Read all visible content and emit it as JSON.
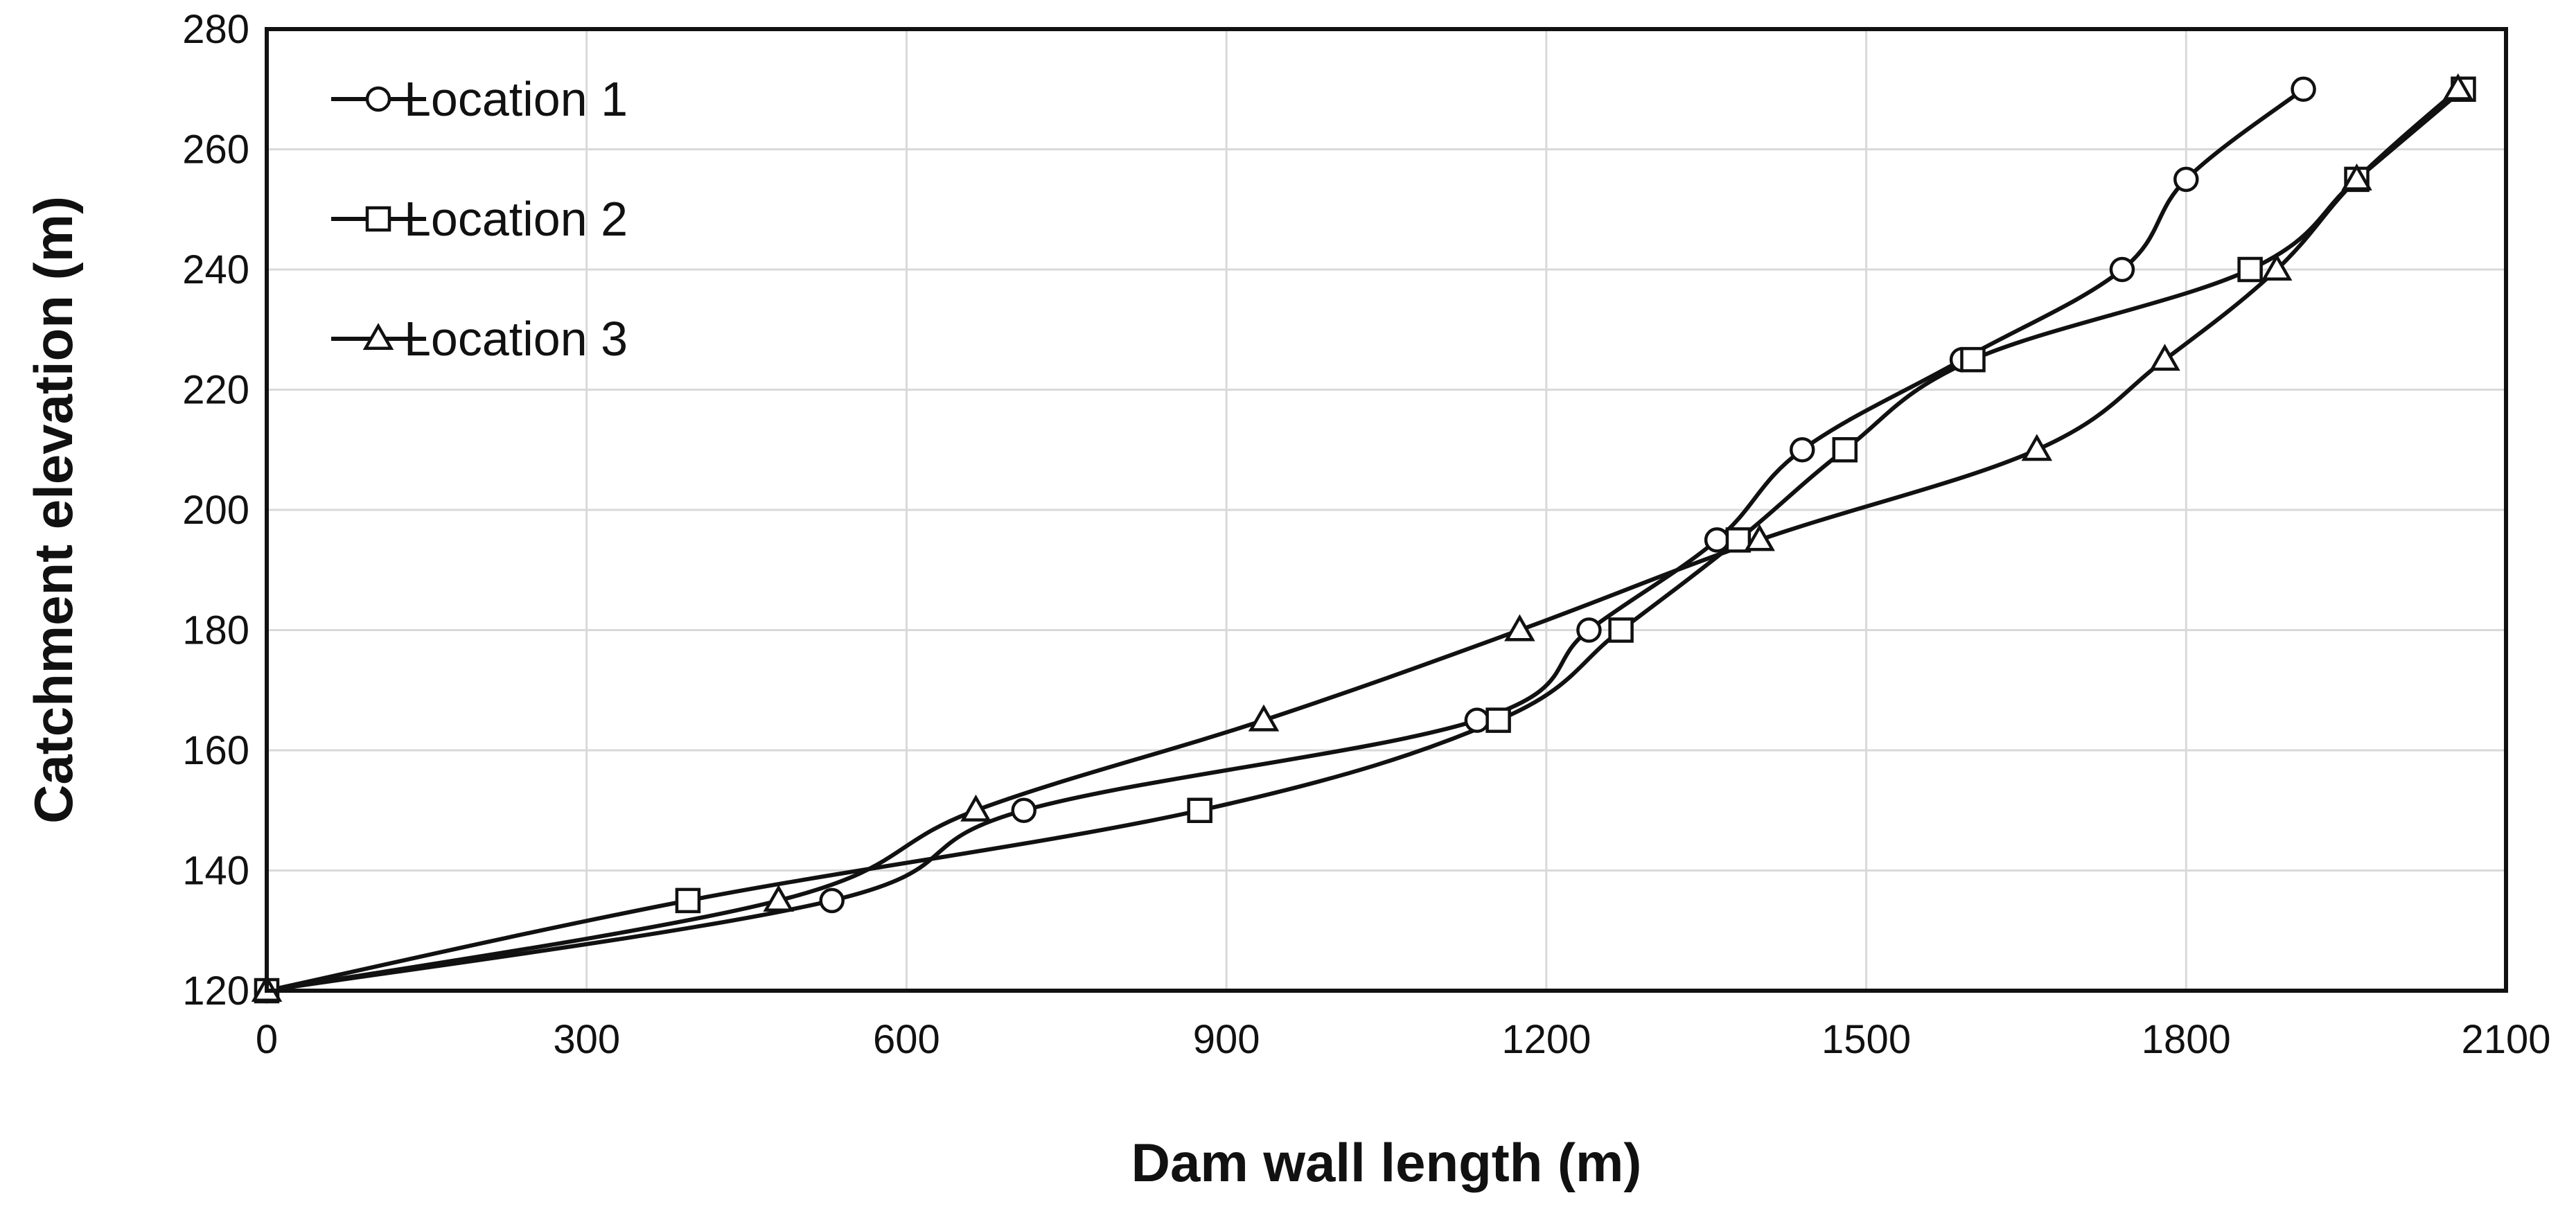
{
  "chart_data": {
    "type": "line",
    "title": "",
    "xlabel": "Dam wall length (m)",
    "ylabel": "Catchment elevation (m)",
    "xlim": [
      0,
      2100
    ],
    "ylim": [
      120,
      280
    ],
    "x_ticks": [
      0,
      300,
      600,
      900,
      1200,
      1500,
      1800,
      2100
    ],
    "y_ticks": [
      120,
      140,
      160,
      180,
      200,
      220,
      240,
      260,
      280
    ],
    "x_tick_labels": [
      "0",
      "300",
      "600",
      "900",
      "1200",
      "1500",
      "1800",
      "2100"
    ],
    "y_tick_labels": [
      "120",
      "140",
      "160",
      "180",
      "200",
      "220",
      "240",
      "260",
      "280"
    ],
    "grid": true,
    "legend_position": "top-left",
    "line_color": "#111111",
    "series": [
      {
        "name": "Location 1",
        "marker": "circle",
        "points": [
          [
            0,
            120
          ],
          [
            530,
            135
          ],
          [
            710,
            150
          ],
          [
            1135,
            165
          ],
          [
            1240,
            180
          ],
          [
            1360,
            195
          ],
          [
            1440,
            210
          ],
          [
            1590,
            225
          ],
          [
            1740,
            240
          ],
          [
            1800,
            255
          ],
          [
            1910,
            270
          ]
        ]
      },
      {
        "name": "Location 2",
        "marker": "square",
        "points": [
          [
            0,
            120
          ],
          [
            395,
            135
          ],
          [
            875,
            150
          ],
          [
            1155,
            165
          ],
          [
            1270,
            180
          ],
          [
            1380,
            195
          ],
          [
            1480,
            210
          ],
          [
            1600,
            225
          ],
          [
            1860,
            240
          ],
          [
            1960,
            255
          ],
          [
            2060,
            270
          ]
        ]
      },
      {
        "name": "Location 3",
        "marker": "triangle",
        "points": [
          [
            0,
            120
          ],
          [
            480,
            135
          ],
          [
            665,
            150
          ],
          [
            935,
            165
          ],
          [
            1175,
            180
          ],
          [
            1400,
            195
          ],
          [
            1660,
            210
          ],
          [
            1780,
            225
          ],
          [
            1885,
            240
          ],
          [
            1960,
            255
          ],
          [
            2055,
            270
          ]
        ]
      }
    ]
  }
}
